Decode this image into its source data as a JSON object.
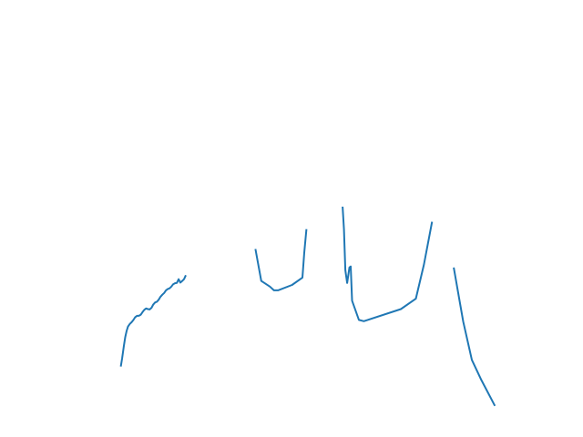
{
  "chart_data": {
    "type": "line",
    "title": "",
    "xlabel": "",
    "ylabel": "",
    "axes_visible": false,
    "grid": false,
    "legend": "none",
    "xlim": [
      0,
      100
    ],
    "ylim": [
      0,
      100
    ],
    "series": [
      {
        "color": "#1f77b4",
        "segments": [
          [
            [
              10.6,
              6.6
            ],
            [
              10.9,
              9.1
            ],
            [
              11.3,
              12.8
            ],
            [
              11.6,
              15.4
            ],
            [
              11.9,
              17.2
            ],
            [
              12.2,
              18.5
            ],
            [
              12.6,
              19.3
            ],
            [
              13.0,
              19.8
            ],
            [
              13.4,
              20.5
            ],
            [
              13.8,
              21.3
            ],
            [
              14.2,
              21.7
            ],
            [
              14.6,
              21.7
            ],
            [
              15.0,
              22.0
            ],
            [
              15.4,
              22.8
            ],
            [
              15.8,
              23.5
            ],
            [
              16.2,
              23.9
            ],
            [
              16.6,
              23.7
            ],
            [
              17.0,
              23.6
            ],
            [
              17.4,
              24.1
            ],
            [
              17.8,
              25.1
            ],
            [
              18.2,
              25.7
            ],
            [
              18.6,
              25.9
            ],
            [
              19.0,
              26.5
            ],
            [
              19.4,
              27.4
            ],
            [
              19.8,
              28.0
            ],
            [
              20.2,
              28.5
            ],
            [
              20.6,
              29.3
            ],
            [
              21.0,
              29.7
            ],
            [
              21.4,
              29.9
            ],
            [
              21.8,
              30.4
            ],
            [
              22.2,
              31.1
            ],
            [
              22.6,
              31.4
            ],
            [
              23.0,
              31.5
            ],
            [
              23.4,
              32.6
            ],
            [
              23.8,
              31.6
            ],
            [
              24.2,
              32.1
            ],
            [
              24.6,
              32.6
            ],
            [
              25.0,
              33.8
            ]
          ],
          [
            [
              40.4,
              41.6
            ],
            [
              41.7,
              32.1
            ],
            [
              43.6,
              30.4
            ],
            [
              44.5,
              29.3
            ],
            [
              45.4,
              29.3
            ],
            [
              48.5,
              30.9
            ],
            [
              50.8,
              33.1
            ],
            [
              51.2,
              40.5
            ],
            [
              51.7,
              47.5
            ]
          ],
          [
            [
              59.7,
              54.2
            ],
            [
              60.0,
              47.4
            ],
            [
              60.3,
              35.3
            ],
            [
              60.7,
              31.5
            ],
            [
              61.2,
              36.1
            ],
            [
              61.5,
              36.4
            ],
            [
              61.8,
              26.2
            ],
            [
              63.3,
              20.5
            ],
            [
              64.4,
              20.1
            ],
            [
              72.6,
              23.7
            ],
            [
              75.9,
              26.8
            ],
            [
              77.7,
              37.0
            ],
            [
              79.5,
              49.7
            ]
          ],
          [
            [
              84.3,
              36.1
            ],
            [
              86.4,
              20.0
            ],
            [
              88.3,
              8.6
            ],
            [
              90.4,
              2.6
            ],
            [
              93.4,
              -5.1
            ]
          ]
        ]
      }
    ]
  }
}
